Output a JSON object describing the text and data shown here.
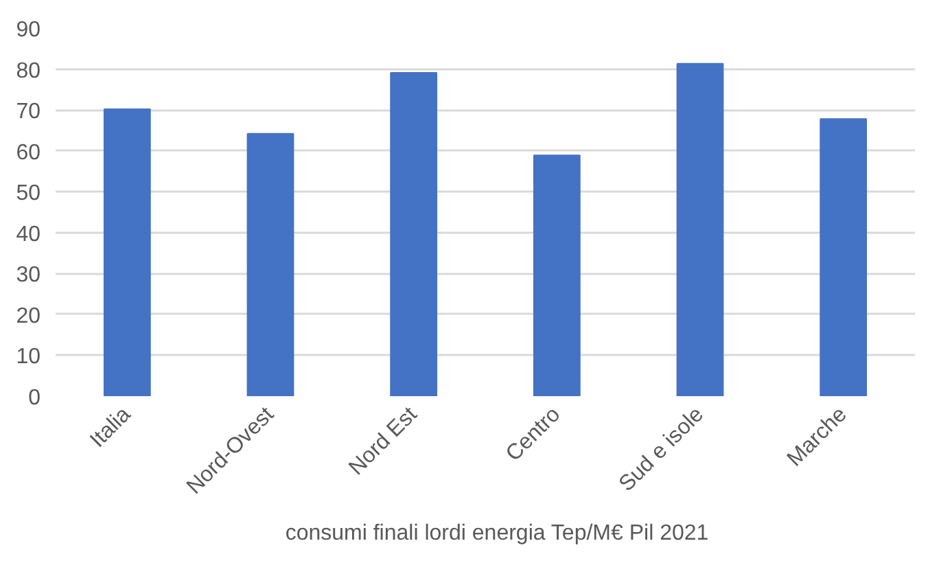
{
  "chart_data": {
    "type": "bar",
    "categories": [
      "Italia",
      "Nord-Ovest",
      "Nord Est",
      "Centro",
      "Sud e isole",
      "Marche"
    ],
    "series": [
      {
        "name": "consumi finali lordi energia Tep/M€ Pil 2021",
        "color": "#4472c4",
        "values": [
          70.2,
          64.2,
          79.1,
          58.9,
          81.3,
          67.8
        ]
      }
    ],
    "ylim": [
      0,
      90
    ],
    "yticks": [
      0,
      10,
      20,
      30,
      40,
      50,
      60,
      70,
      80,
      90
    ],
    "grid": "y",
    "legend": "bottom"
  }
}
